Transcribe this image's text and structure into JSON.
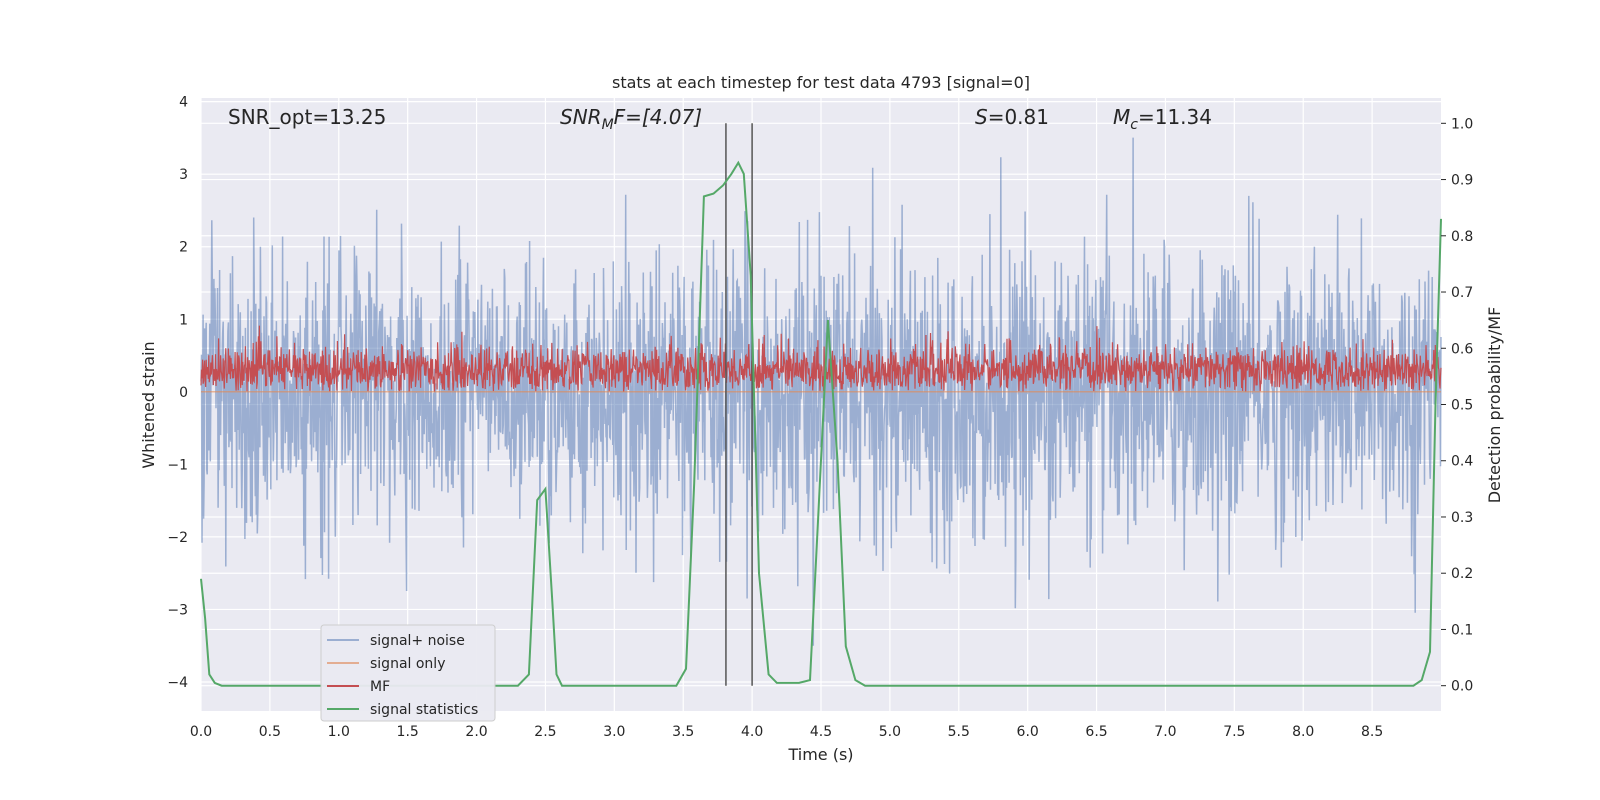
{
  "chart_data": {
    "type": "line",
    "title": "stats at each timestep for test data 4793 [signal=0]",
    "xlabel": "Time (s)",
    "ylabel_left": "Whitened strain",
    "ylabel_right": "Detection probability/MF",
    "xlim": [
      0.0,
      9.0
    ],
    "ylim_left": [
      -4.4,
      4.05
    ],
    "ylim_right": [
      -0.045,
      1.045
    ],
    "x_ticks": [
      "0.0",
      "0.5",
      "1.0",
      "1.5",
      "2.0",
      "2.5",
      "3.0",
      "3.5",
      "4.0",
      "4.5",
      "5.0",
      "5.5",
      "6.0",
      "6.5",
      "7.0",
      "7.5",
      "8.0",
      "8.5"
    ],
    "y_ticks_left": [
      "4",
      "3",
      "2",
      "1",
      "0",
      "−1",
      "−2",
      "−3",
      "−4"
    ],
    "y_ticks_right": [
      "1.0",
      "0.9",
      "0.8",
      "0.7",
      "0.6",
      "0.5",
      "0.4",
      "0.3",
      "0.2",
      "0.1",
      "0.0"
    ],
    "grid": true,
    "legend_position": "lower-left",
    "annotations": {
      "snr_opt": "SNR_opt=13.25",
      "snr_mf_base": "SNR",
      "snr_mf_sub": "M",
      "snr_mf_rest": "F=[4.07]",
      "s_label": "S",
      "s_value": "=0.81",
      "mc_base": "M",
      "mc_sub": "c",
      "mc_value": "=11.34"
    },
    "vertical_lines_x": [
      3.81,
      4.0
    ],
    "series": [
      {
        "name": "signal+ noise",
        "axis": "left",
        "color": "#4c72b0",
        "style": "noise",
        "amplitude_range": [
          -3.5,
          3.6
        ]
      },
      {
        "name": "signal only",
        "axis": "left",
        "color": "#dd8452",
        "style": "flat",
        "values_constant": 0.0
      },
      {
        "name": "MF",
        "axis": "left",
        "color": "#c44e52",
        "style": "noise",
        "amplitude_range": [
          0.0,
          1.0
        ]
      },
      {
        "name": "signal statistics",
        "axis": "right",
        "color": "#55a868",
        "style": "line",
        "x": [
          0.0,
          0.03,
          0.06,
          0.1,
          0.15,
          0.25,
          0.5,
          1.0,
          1.5,
          2.0,
          2.3,
          2.38,
          2.44,
          2.5,
          2.55,
          2.58,
          2.62,
          3.0,
          3.45,
          3.52,
          3.58,
          3.65,
          3.72,
          3.79,
          3.85,
          3.9,
          3.94,
          3.99,
          4.05,
          4.12,
          4.18,
          4.26,
          4.34,
          4.42,
          4.48,
          4.55,
          4.62,
          4.68,
          4.75,
          4.82,
          5.0,
          6.0,
          7.0,
          8.0,
          8.8,
          8.86,
          8.92,
          8.96,
          9.0
        ],
        "y": [
          0.19,
          0.12,
          0.02,
          0.005,
          0.0,
          0.0,
          0.0,
          0.0,
          0.0,
          0.0,
          0.0,
          0.02,
          0.33,
          0.35,
          0.15,
          0.02,
          0.0,
          0.0,
          0.0,
          0.03,
          0.36,
          0.87,
          0.875,
          0.89,
          0.91,
          0.93,
          0.91,
          0.73,
          0.2,
          0.02,
          0.005,
          0.005,
          0.005,
          0.01,
          0.3,
          0.65,
          0.4,
          0.07,
          0.01,
          0.0,
          0.0,
          0.0,
          0.0,
          0.0,
          0.0,
          0.01,
          0.06,
          0.5,
          0.83
        ]
      }
    ]
  }
}
